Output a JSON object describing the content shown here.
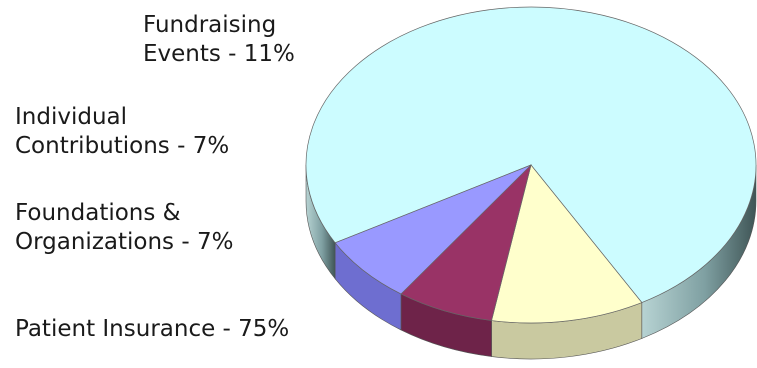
{
  "chart_data": {
    "type": "pie",
    "title": "",
    "slices": [
      {
        "label_lines": [
          "Patient Insurance - 75%"
        ],
        "value": 75,
        "color": "#ccfcff",
        "side_color": "#9fc4c6"
      },
      {
        "label_lines": [
          "Fundraising",
          "Events - 11%"
        ],
        "value": 11,
        "color": "#ffffcc",
        "side_color": "#c9c9a0"
      },
      {
        "label_lines": [
          "Individual",
          "Contributions - 7%"
        ],
        "value": 7,
        "color": "#993366",
        "side_color": "#6e2349"
      },
      {
        "label_lines": [
          "Foundations &",
          "Organizations - 7%"
        ],
        "value": 7,
        "color": "#9999ff",
        "side_color": "#6e6ed0"
      }
    ]
  }
}
